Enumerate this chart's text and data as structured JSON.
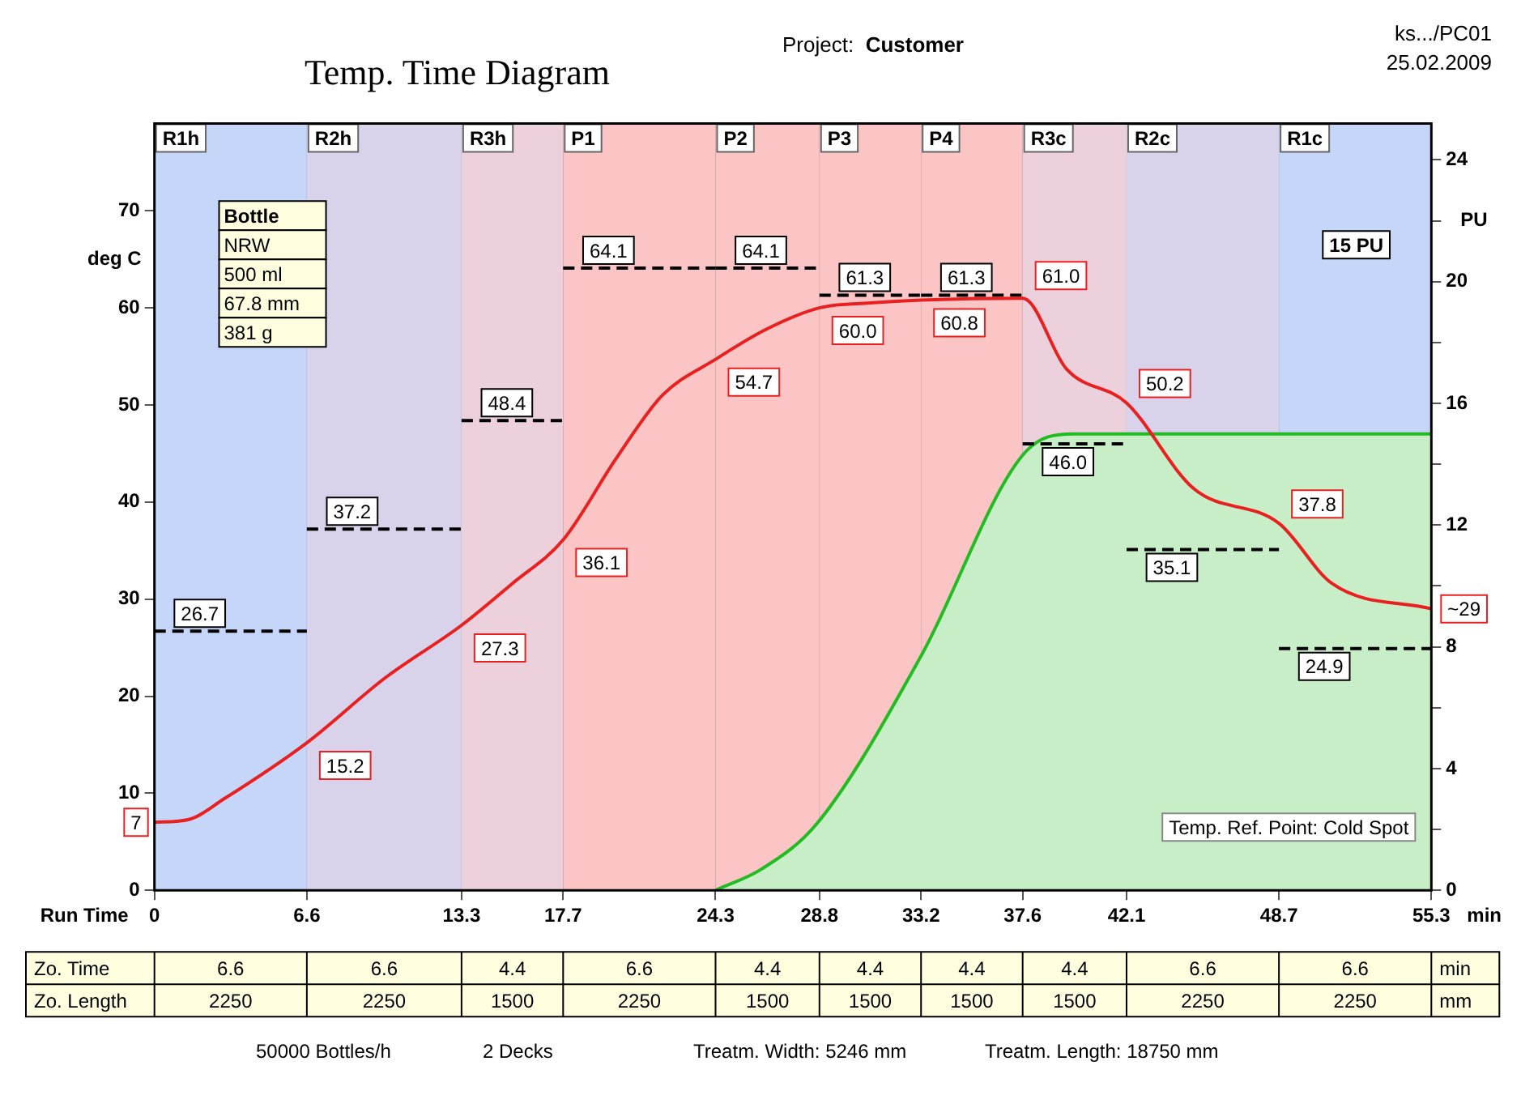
{
  "chart_data": {
    "type": "line",
    "title": "Temp. Time Diagram",
    "xlabel": "Run Time",
    "ylabel": "deg C",
    "y2label": "PU",
    "grid": "x",
    "xlim": [
      0,
      55.3
    ],
    "xticks": [
      0,
      6.6,
      13.3,
      17.7,
      24.3,
      28.8,
      33.2,
      37.6,
      42.1,
      48.7,
      55.3
    ],
    "ylim": [
      0,
      79
    ],
    "yticks": [
      0,
      10,
      20,
      30,
      40,
      50,
      60,
      70
    ],
    "y2lim": [
      0,
      25.2
    ],
    "y2ticks": [
      0,
      {
        "value": 2,
        "label": null
      },
      4,
      {
        "value": 6,
        "label": null
      },
      8,
      {
        "value": 10,
        "label": null
      },
      12,
      {
        "value": 14,
        "label": null
      },
      16,
      {
        "value": 18,
        "label": null
      },
      20,
      {
        "value": 22,
        "label": null
      },
      24
    ],
    "bands": [
      {
        "axis": "x",
        "from": 0,
        "to": 6.6,
        "label": "R1h",
        "color": "#c5d6f8"
      },
      {
        "axis": "x",
        "from": 6.6,
        "to": 13.3,
        "label": "R2h",
        "color": "#d8d2ea"
      },
      {
        "axis": "x",
        "from": 13.3,
        "to": 17.7,
        "label": "R3h",
        "color": "#ecd0dc"
      },
      {
        "axis": "x",
        "from": 17.7,
        "to": 24.3,
        "label": "P1",
        "color": "#fbc5c5"
      },
      {
        "axis": "x",
        "from": 24.3,
        "to": 28.8,
        "label": "P2",
        "color": "#fbc5c5"
      },
      {
        "axis": "x",
        "from": 28.8,
        "to": 33.2,
        "label": "P3",
        "color": "#fbc5c5"
      },
      {
        "axis": "x",
        "from": 33.2,
        "to": 37.6,
        "label": "P4",
        "color": "#fbc5c5"
      },
      {
        "axis": "x",
        "from": 37.6,
        "to": 42.1,
        "label": "R3c",
        "color": "#ecd0dc"
      },
      {
        "axis": "x",
        "from": 42.1,
        "to": 48.7,
        "label": "R2c",
        "color": "#d8d2ea"
      },
      {
        "axis": "x",
        "from": 48.7,
        "to": 55.3,
        "label": "R1c",
        "color": "#c5d6f8"
      }
    ],
    "series": [
      {
        "type": "area",
        "axis": "y2",
        "color": "#22bb22",
        "x": [
          24.3,
          26.3,
          28.7,
          33.2,
          37.6,
          39.8,
          55.3
        ],
        "values": [
          0,
          0.7,
          2.2,
          7.7,
          14.3,
          15,
          15
        ]
      },
      {
        "type": "line",
        "line_style": "dashed",
        "color": "#000000",
        "x": [
          0,
          6.6
        ],
        "values": [
          26.7,
          26.7
        ],
        "value_labels": [
          "26.7",
          null
        ]
      },
      {
        "type": "line",
        "line_style": "dashed",
        "color": "#000000",
        "x": [
          6.6,
          13.3
        ],
        "values": [
          37.2,
          37.2
        ],
        "value_labels": [
          "37.2",
          null
        ]
      },
      {
        "type": "line",
        "line_style": "dashed",
        "color": "#000000",
        "x": [
          13.3,
          17.7
        ],
        "values": [
          48.4,
          48.4
        ],
        "value_labels": [
          "48.4",
          null
        ]
      },
      {
        "type": "line",
        "line_style": "dashed",
        "color": "#000000",
        "x": [
          17.7,
          24.3
        ],
        "values": [
          64.1,
          64.1
        ],
        "value_labels": [
          "64.1",
          null
        ]
      },
      {
        "type": "line",
        "line_style": "dashed",
        "color": "#000000",
        "x": [
          24.3,
          28.8
        ],
        "values": [
          64.1,
          64.1
        ],
        "value_labels": [
          "64.1",
          null
        ]
      },
      {
        "type": "line",
        "line_style": "dashed",
        "color": "#000000",
        "x": [
          28.8,
          33.2
        ],
        "values": [
          61.3,
          61.3
        ],
        "value_labels": [
          "61.3",
          null
        ]
      },
      {
        "type": "line",
        "line_style": "dashed",
        "color": "#000000",
        "x": [
          33.2,
          37.6
        ],
        "values": [
          61.3,
          61.3
        ],
        "value_labels": [
          "61.3",
          null
        ]
      },
      {
        "type": "line",
        "line_style": "dashed",
        "color": "#000000",
        "x": [
          37.6,
          42.1
        ],
        "values": [
          46.0,
          46.0
        ],
        "value_labels": [
          "46.0",
          null
        ]
      },
      {
        "type": "line",
        "line_style": "dashed",
        "color": "#000000",
        "x": [
          42.1,
          48.7
        ],
        "values": [
          35.1,
          35.1
        ],
        "value_labels": [
          "35.1",
          null
        ]
      },
      {
        "type": "line",
        "line_style": "dashed",
        "color": "#000000",
        "x": [
          48.7,
          55.3
        ],
        "values": [
          24.9,
          24.9
        ],
        "value_labels": [
          "24.9",
          null
        ]
      },
      {
        "type": "line",
        "color": "#e82020",
        "x": [
          0,
          1.5,
          3,
          6.6,
          10,
          13.3,
          15.5,
          17.7,
          20,
          22,
          24.3,
          26.5,
          28.8,
          31,
          33.2,
          37.6,
          39.5,
          42.1,
          45,
          48.7,
          51,
          55.3
        ],
        "values": [
          7,
          7.3,
          9.4,
          15.2,
          21.9,
          27.3,
          31.6,
          36.1,
          44.5,
          51.0,
          54.7,
          57.8,
          60.0,
          60.5,
          60.8,
          61.0,
          53.7,
          50.2,
          41.4,
          37.8,
          31.6,
          29
        ],
        "value_labels": [
          "7",
          null,
          null,
          "15.2",
          null,
          "27.3",
          null,
          "36.1",
          null,
          null,
          "54.7",
          null,
          "60.0",
          null,
          "60.8",
          "61.0",
          null,
          "50.2",
          null,
          "37.8",
          null,
          "~29"
        ]
      }
    ],
    "annotations": [
      "Project:",
      "Customer",
      "ks.../PC01",
      "25.02.2009",
      "Bottle",
      "NRW",
      "500 ml",
      "67.8 mm",
      "381 g",
      "15 PU",
      "Temp. Ref. Point: Cold Spot",
      "min",
      "Zo. Time",
      "6.6",
      "6.6",
      "4.4",
      "6.6",
      "4.4",
      "4.4",
      "4.4",
      "4.4",
      "6.6",
      "6.6",
      "min",
      "Zo. Length",
      "2250",
      "2250",
      "1500",
      "2250",
      "1500",
      "1500",
      "1500",
      "1500",
      "2250",
      "2250",
      "mm",
      "50000 Bottles/h",
      "2 Decks",
      "Treatm. Width: 5246 mm",
      "Treatm. Length: 18750 mm"
    ]
  }
}
